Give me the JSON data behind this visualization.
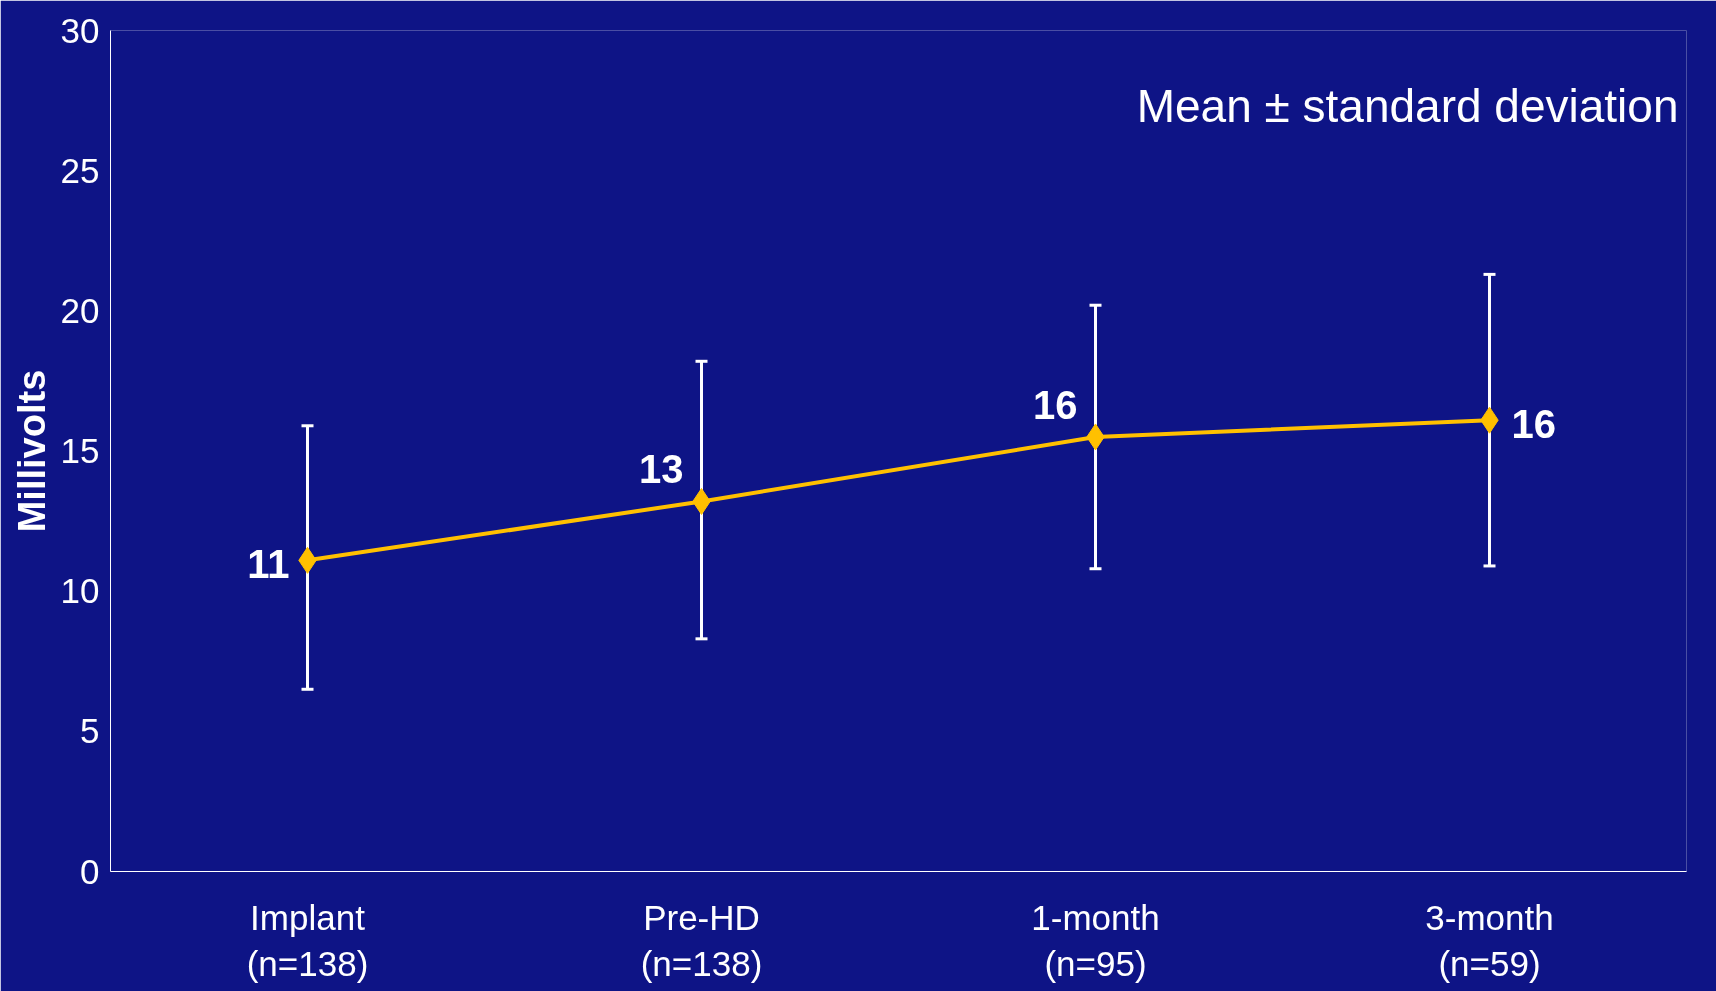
{
  "chart_data": {
    "type": "line",
    "ylabel": "Millivolts",
    "categories": [
      "Implant\n(n=138)",
      "Pre-HD\n(n=138)",
      "1-month\n(n=95)",
      "3-month\n(n=59)"
    ],
    "series": [
      {
        "color": "#ffc000",
        "values": [
          11.1,
          13.2,
          15.5,
          16.1
        ],
        "errors": [
          [
            6.5,
            15.9
          ],
          [
            8.3,
            18.2
          ],
          [
            10.8,
            20.2
          ],
          [
            10.9,
            21.3
          ]
        ],
        "value_labels": [
          "11",
          "13",
          "16",
          "16"
        ]
      }
    ],
    "ylim": [
      0,
      30
    ],
    "yticks": [
      0,
      5,
      10,
      15,
      20,
      25,
      30
    ],
    "marker": "diamond",
    "line_style": "solid",
    "grid": false,
    "annotations": [
      "Mean ± standard deviation"
    ]
  }
}
